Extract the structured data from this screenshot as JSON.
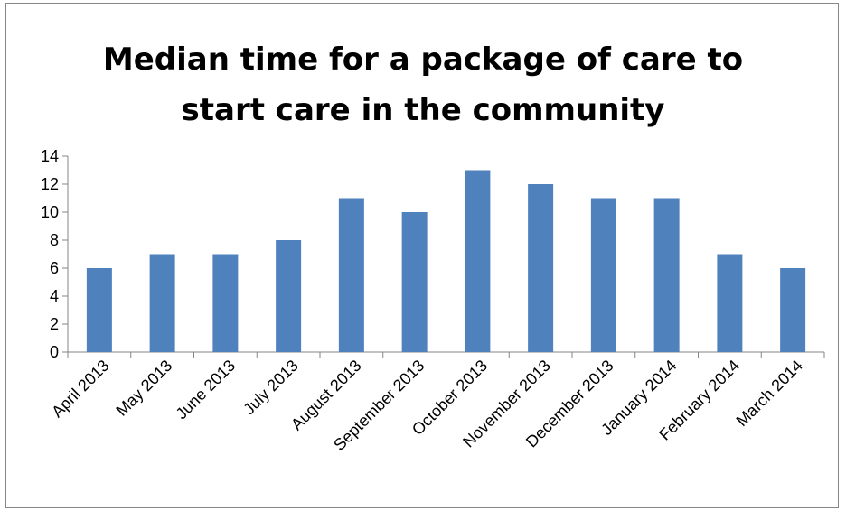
{
  "chart_data": {
    "type": "bar",
    "title_lines": [
      "Median time for a package of care to",
      "start care in the community"
    ],
    "categories": [
      "April 2013",
      "May 2013",
      "June 2013",
      "July 2013",
      "August 2013",
      "September 2013",
      "October 2013",
      "November 2013",
      "December 2013",
      "January 2014",
      "February 2014",
      "March 2014"
    ],
    "values": [
      6,
      7,
      7,
      8,
      11,
      10,
      13,
      12,
      11,
      11,
      7,
      6
    ],
    "xlabel": "",
    "ylabel": "",
    "ylim": [
      0,
      14
    ],
    "yticks": [
      "0",
      "2",
      "4",
      "6",
      "8",
      "10",
      "12",
      "14"
    ],
    "grid": false,
    "legend": "none",
    "bar_color": "#4F81BD"
  }
}
